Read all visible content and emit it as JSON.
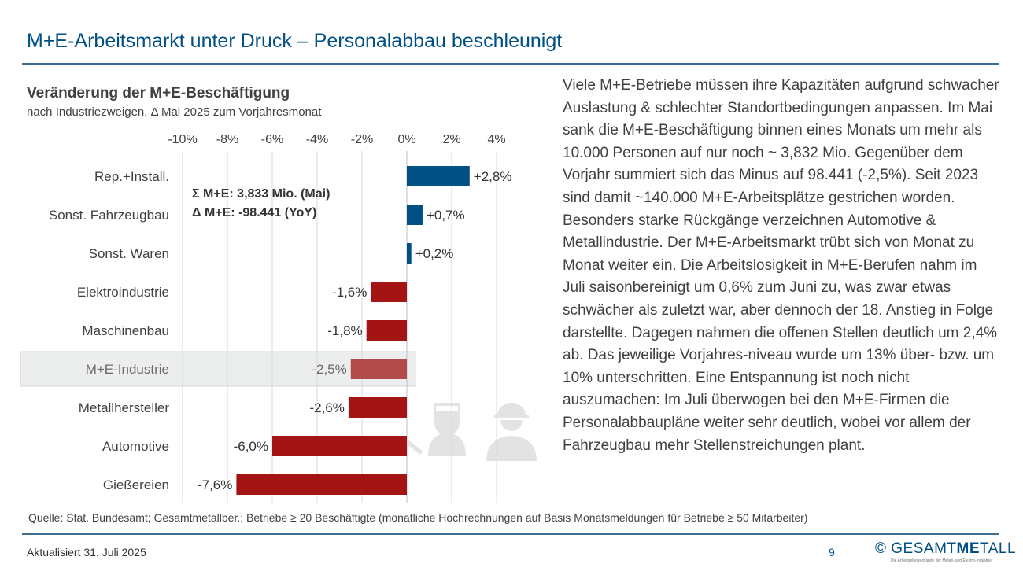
{
  "slide": {
    "title": "M+E-Arbeitsmarkt unter Druck – Personalabbau beschleunigt",
    "body_text": "Viele M+E-Betriebe müssen ihre Kapazitäten aufgrund schwacher Auslastung & schlechter Standortbedingungen anpassen. Im Mai sank die M+E-Beschäftigung binnen eines Monats um mehr als 10.000 Personen auf nur noch ~ 3,832 Mio. Gegenüber dem Vorjahr summiert sich das Minus auf 98.441 (-2,5%). Seit 2023 sind damit ~140.000 M+E-Arbeitsplätze gestrichen worden. Besonders starke Rückgänge verzeichnen Automotive & Metallindustrie. Der M+E-Arbeitsmarkt trübt sich von Monat zu Monat weiter ein. Die Arbeitslosigkeit in M+E-Berufen nahm im Juli saisonbereinigt um 0,6% zum Juni zu, was zwar etwas schwächer als zuletzt war, aber dennoch der 18. Anstieg in Folge darstellte. Dagegen nahmen die offenen Stellen deutlich um 2,4% ab. Das jeweilige Vorjahres-niveau wurde um 13% über- bzw. um 10% unterschritten. Eine Entspannung ist noch nicht auszumachen: Im Juli überwogen bei den M+E-Firmen die Personalabbaupläne weiter sehr deutlich, wobei vor allem der Fahrzeugbau mehr Stellenstreichungen plant.",
    "source": "Quelle: Stat. Bundesamt; Gesamtmetallber.; Betriebe ≥ 20 Beschäftigte (monatliche Hochrechnungen auf Basis Monatsmeldungen für Betriebe ≥ 50 Mitarbeiter)",
    "updated": "Aktualisiert 31. Juli 2025",
    "page_number": "9"
  },
  "logo": {
    "symbol": "©",
    "text_pre": "GESAMT",
    "text_me": "ME",
    "text_post": "TALL",
    "tagline": "Die Arbeitgeberverbände der Metall- und Elektro-Industrie"
  },
  "colors": {
    "title": "#005083",
    "positive": "#005083",
    "negative": "#a31515",
    "highlight_bar": "#b34a4a",
    "highlight_row": "#eceeee",
    "grid": "#d9d9d9"
  },
  "icons": [
    "welder-icon",
    "worker-icon"
  ],
  "chart_data": {
    "type": "bar",
    "orientation": "horizontal",
    "title": "Veränderung der M+E-Beschäftigung",
    "subtitle": "nach Industriezweigen, Δ Mai 2025 zum Vorjahresmonat",
    "xlim": [
      -10,
      4
    ],
    "ticks": [
      -10,
      -8,
      -6,
      -4,
      -2,
      0,
      2,
      4
    ],
    "tick_labels": [
      "-10%",
      "-8%",
      "-6%",
      "-4%",
      "-2%",
      "0%",
      "2%",
      "4%"
    ],
    "categories": [
      "Rep.+Install.",
      "Sonst. Fahrzeugbau",
      "Sonst. Waren",
      "Elektroindustrie",
      "Maschinenbau",
      "M+E-Industrie",
      "Metallhersteller",
      "Automotive",
      "Gießereien"
    ],
    "values": [
      2.8,
      0.7,
      0.2,
      -1.6,
      -1.8,
      -2.5,
      -2.6,
      -6.0,
      -7.6
    ],
    "value_labels": [
      "+2,8%",
      "+0,7%",
      "+0,2%",
      "-1,6%",
      "-1,8%",
      "-2,5%",
      "-2,6%",
      "-6,0%",
      "-7,6%"
    ],
    "highlight": "M+E-Industrie",
    "annotation": [
      "Σ M+E: 3,833 Mio. (Mai)",
      "Δ M+E: -98.441 (YoY)"
    ]
  }
}
